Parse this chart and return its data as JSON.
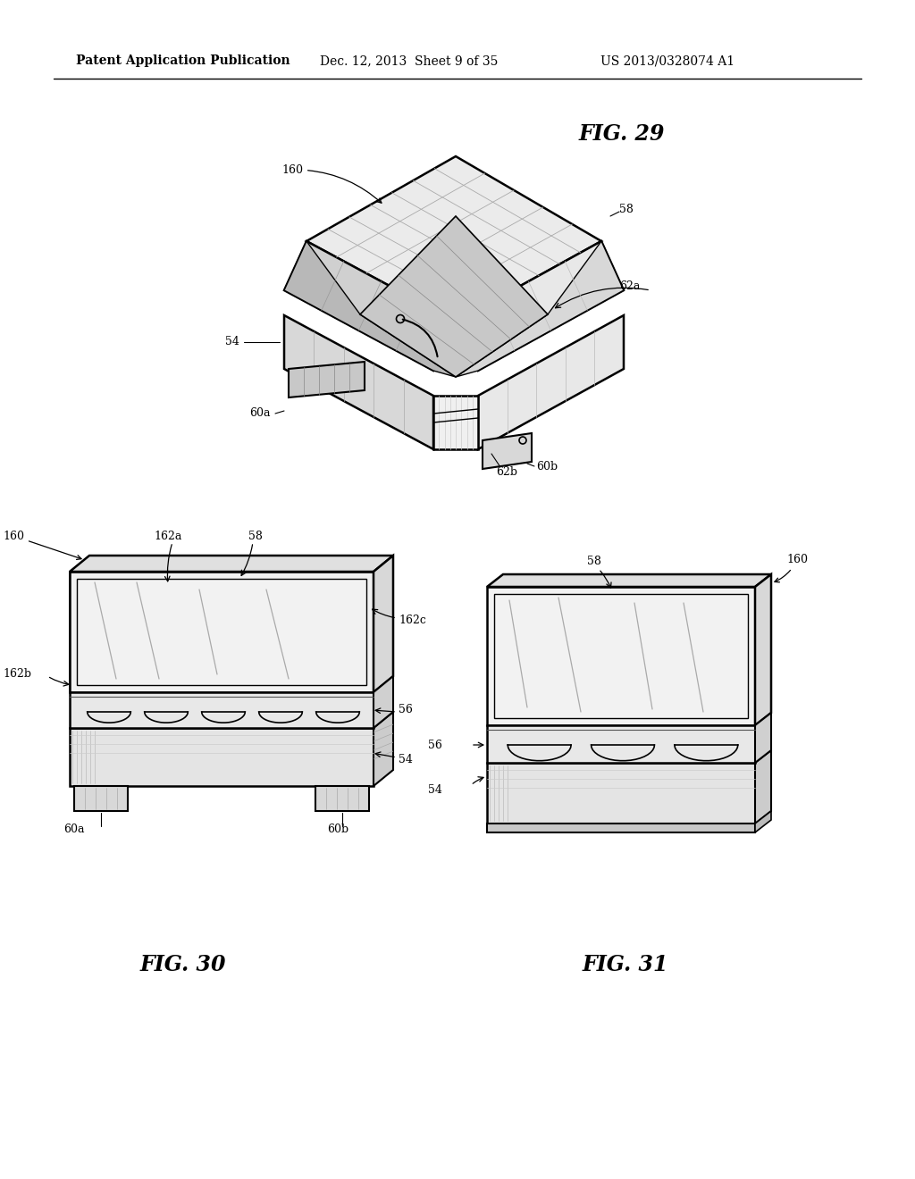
{
  "bg_color": "#ffffff",
  "header_left": "Patent Application Publication",
  "header_mid": "Dec. 12, 2013  Sheet 9 of 35",
  "header_right": "US 2013/0328074 A1",
  "fig29_title": "FIG. 29",
  "fig30_title": "FIG. 30",
  "fig31_title": "FIG. 31"
}
